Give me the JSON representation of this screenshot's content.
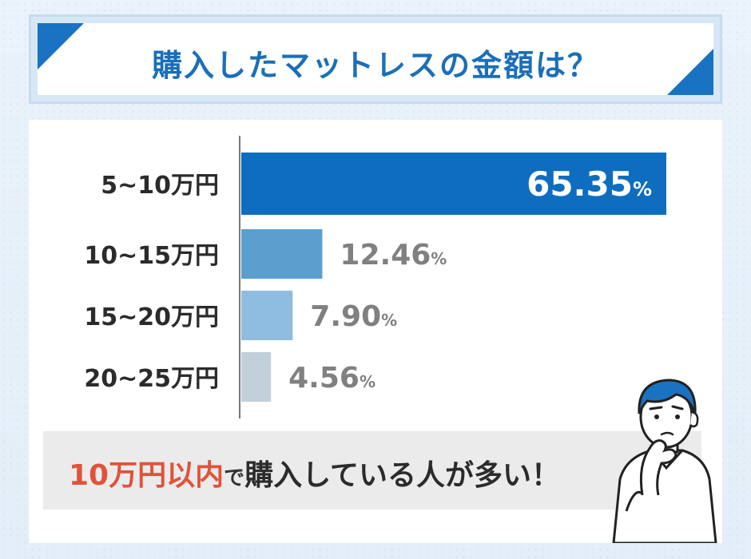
{
  "chart_data": {
    "type": "bar",
    "orientation": "horizontal",
    "title": "購入したマットレスの金額は？",
    "categories": [
      "5~10万円",
      "10~15万円",
      "15~20万円",
      "20~25万円"
    ],
    "values": [
      65.35,
      12.46,
      7.9,
      4.56
    ],
    "value_labels": [
      {
        "num": "65.35",
        "unit": "%"
      },
      {
        "num": "12.46",
        "unit": "%"
      },
      {
        "num": "7.90",
        "unit": "%"
      },
      {
        "num": "4.56",
        "unit": "%"
      }
    ],
    "bar_colors": [
      "#0f6dbf",
      "#5b9fcf",
      "#8fbde2",
      "#c1cfdb"
    ],
    "label_colors": [
      "#ffffff",
      "#808080",
      "#808080",
      "#808080"
    ],
    "xlim": [
      0,
      65.35
    ],
    "grid": false,
    "legend": "none"
  },
  "callout": {
    "highlight": "10万円以内",
    "particle": "で",
    "rest": "購入している人が多い！"
  },
  "colors": {
    "accent": "#1a72c2",
    "title_text": "#1a6fb8",
    "highlight": "#e0533a"
  },
  "decorations": {
    "person_icon": "thinking-man-icon"
  }
}
